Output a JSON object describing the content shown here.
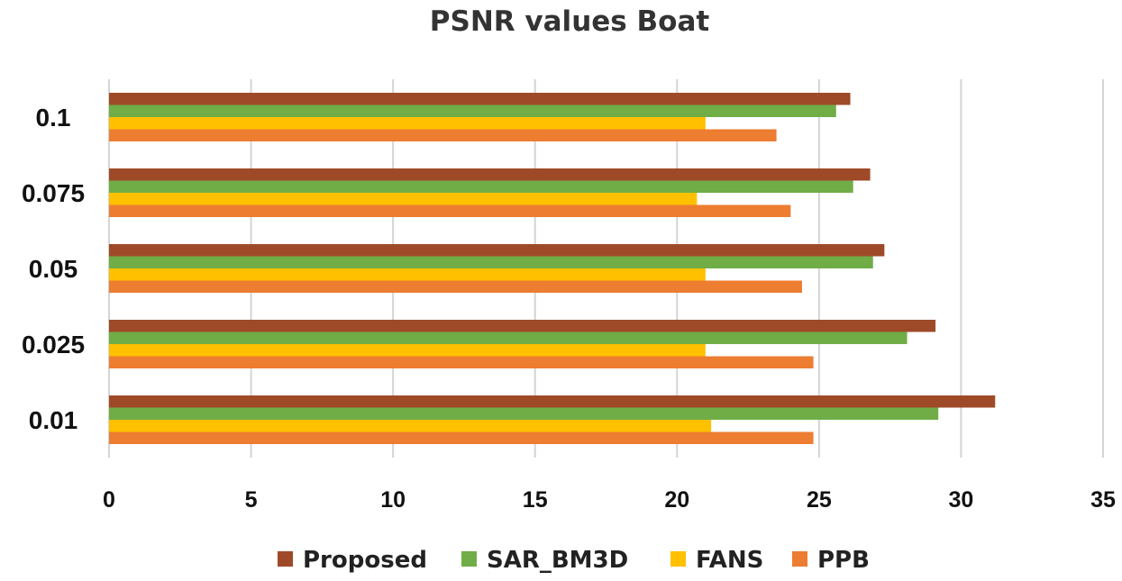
{
  "chart_data": {
    "type": "bar",
    "orientation": "horizontal",
    "title": "PSNR values Boat",
    "xlabel": "",
    "ylabel": "",
    "xlim": [
      0,
      35
    ],
    "xticks": [
      "0",
      "5",
      "10",
      "15",
      "20",
      "25",
      "30",
      "35"
    ],
    "grid": true,
    "legend_position": "bottom",
    "categories": [
      "0.1",
      "0.075",
      "0.05",
      "0.025",
      "0.01"
    ],
    "series": [
      {
        "name": "Proposed",
        "color": "#9E4A28",
        "values": [
          26.1,
          26.8,
          27.3,
          29.1,
          31.2
        ]
      },
      {
        "name": "SAR_BM3D",
        "color": "#70AD47",
        "values": [
          25.6,
          26.2,
          26.9,
          28.1,
          29.2
        ]
      },
      {
        "name": "FANS",
        "color": "#FFC000",
        "values": [
          21.0,
          20.7,
          21.0,
          21.0,
          21.2
        ]
      },
      {
        "name": "PPB",
        "color": "#ED7D31",
        "values": [
          23.5,
          24.0,
          24.4,
          24.8,
          24.8
        ]
      }
    ]
  }
}
